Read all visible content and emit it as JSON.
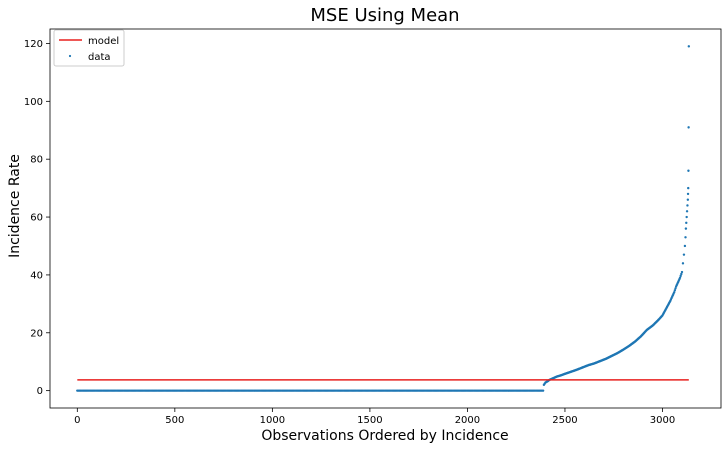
{
  "chart_data": {
    "type": "scatter",
    "title": "MSE Using Mean",
    "xlabel": "Observations Ordered by Incidence",
    "ylabel": "Incidence Rate",
    "xlim": [
      -140,
      3300
    ],
    "ylim": [
      -6,
      125
    ],
    "xticks": [
      0,
      500,
      1000,
      1500,
      2000,
      2500,
      3000
    ],
    "yticks": [
      0,
      20,
      40,
      60,
      80,
      100,
      120
    ],
    "legend": {
      "placement": "top-left",
      "entries": [
        "model",
        "data"
      ]
    },
    "colors": {
      "model": "#e8201f",
      "data": "#1f77b4"
    },
    "series": [
      {
        "name": "model",
        "kind": "line",
        "x": [
          0,
          3135
        ],
        "y": [
          3.72,
          3.72
        ]
      },
      {
        "name": "data",
        "kind": "scatter",
        "zero_count": 2390,
        "x": [
          2392,
          2400,
          2410,
          2420,
          2440,
          2460,
          2480,
          2500,
          2530,
          2560,
          2590,
          2620,
          2650,
          2680,
          2710,
          2740,
          2770,
          2800,
          2830,
          2860,
          2890,
          2920,
          2950,
          2980,
          3000,
          3020,
          3040,
          3050,
          3060,
          3070,
          3080,
          3090,
          3100,
          3105,
          3110,
          3115,
          3118,
          3120,
          3122,
          3124,
          3126,
          3128,
          3130,
          3131,
          3132,
          3133,
          3134,
          3135
        ],
        "y": [
          2.0,
          2.8,
          3.2,
          3.7,
          4.3,
          4.9,
          5.3,
          5.8,
          6.5,
          7.2,
          8.0,
          8.8,
          9.4,
          10.2,
          11.0,
          12.0,
          13.0,
          14.2,
          15.5,
          17.0,
          18.8,
          21.0,
          22.5,
          24.5,
          26.0,
          28.5,
          31.0,
          32.5,
          34.0,
          36.0,
          37.5,
          39.0,
          41.0,
          44.0,
          47.0,
          50.0,
          53.0,
          56.0,
          58.0,
          60.0,
          62.0,
          64.0,
          66.0,
          68.0,
          70.0,
          76.0,
          91.0,
          119.0
        ]
      }
    ]
  }
}
